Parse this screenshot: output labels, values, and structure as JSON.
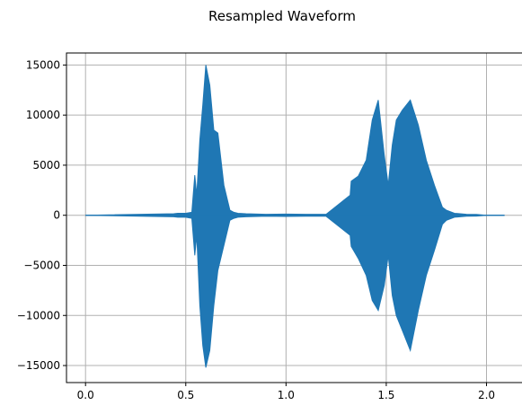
{
  "chart_data": {
    "type": "line",
    "title": "Resampled Waveform",
    "xlabel": "",
    "ylabel": "",
    "xlim": [
      -0.095,
      2.195
    ],
    "ylim": [
      -16700,
      16200
    ],
    "x_ticks": [
      0.0,
      0.5,
      1.0,
      1.5,
      2.0
    ],
    "x_tick_labels": [
      "0.0",
      "0.5",
      "1.0",
      "1.5",
      "2.0"
    ],
    "y_ticks": [
      -15000,
      -10000,
      -5000,
      0,
      5000,
      10000,
      15000
    ],
    "y_tick_labels": [
      "−15000",
      "−10000",
      "−5000",
      "0",
      "5000",
      "10000",
      "15000"
    ],
    "grid": true,
    "color": "#1f77b4",
    "series": [
      {
        "x": [
          0.0,
          0.44,
          0.46,
          0.5,
          0.53,
          0.545,
          0.555,
          0.57,
          0.585,
          0.6,
          0.62,
          0.64,
          0.66,
          0.69,
          0.72,
          0.74,
          0.76,
          0.8,
          0.9,
          1.0,
          1.1,
          1.2,
          1.32,
          1.325,
          1.36,
          1.4,
          1.43,
          1.46,
          1.49,
          1.51,
          1.53,
          1.55,
          1.58,
          1.62,
          1.66,
          1.7,
          1.74,
          1.78,
          1.8,
          1.84,
          1.9,
          1.95,
          2.0,
          2.09
        ],
        "upper": [
          0,
          150,
          200,
          200,
          300,
          4000,
          2000,
          7500,
          11000,
          15000,
          13000,
          8500,
          8200,
          3000,
          500,
          300,
          200,
          150,
          100,
          120,
          100,
          100,
          2000,
          3400,
          3900,
          5500,
          9500,
          11500,
          6000,
          3000,
          7000,
          9500,
          10500,
          11500,
          9000,
          5500,
          3000,
          800,
          500,
          200,
          100,
          80,
          0,
          0
        ],
        "lower": [
          0,
          -150,
          -200,
          -200,
          -300,
          -4000,
          -2000,
          -9000,
          -13000,
          -15200,
          -13500,
          -9000,
          -5500,
          -3000,
          -500,
          -300,
          -200,
          -150,
          -100,
          -120,
          -100,
          -100,
          -2000,
          -3100,
          -4300,
          -6000,
          -8500,
          -9500,
          -7000,
          -4000,
          -8000,
          -10000,
          -11500,
          -13500,
          -9500,
          -6000,
          -3500,
          -900,
          -500,
          -200,
          -100,
          -80,
          0,
          0
        ]
      }
    ]
  }
}
